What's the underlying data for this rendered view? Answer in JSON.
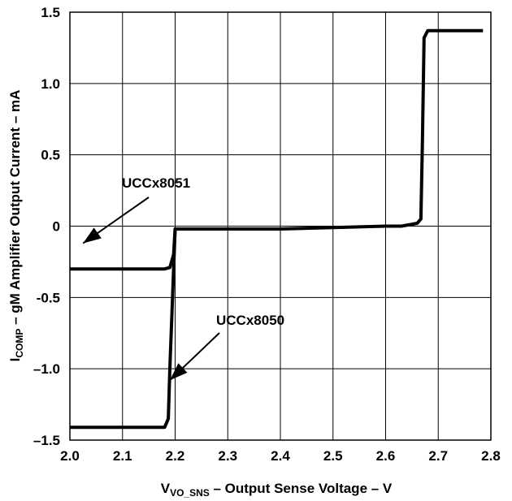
{
  "chart_data": {
    "type": "line",
    "xlabel": {
      "main": "V",
      "sub": "VO_SNS",
      "rest": " – Output Sense Voltage – V"
    },
    "ylabel": {
      "main": "I",
      "sub": "COMP",
      "rest": " – gM Amplifier Output Current – mA"
    },
    "xlim": [
      2.0,
      2.8
    ],
    "ylim": [
      -1.5,
      1.5
    ],
    "x_ticks": [
      2.0,
      2.1,
      2.2,
      2.3,
      2.4,
      2.5,
      2.6,
      2.7,
      2.8
    ],
    "x_tick_labels": [
      "2.0",
      "2.1",
      "2.2",
      "2.3",
      "2.4",
      "2.5",
      "2.6",
      "2.7",
      "2.8"
    ],
    "y_ticks": [
      1.5,
      1.0,
      0.5,
      0,
      -0.5,
      -1.0,
      -1.5
    ],
    "y_tick_labels": [
      "1.5",
      "1.0",
      "0.5",
      "0",
      "-0.5",
      "–1.0",
      "–1.5"
    ],
    "grid": true,
    "series": [
      {
        "name": "UCCx8051",
        "x": [
          2.0,
          2.18,
          2.19,
          2.197,
          2.2,
          2.3,
          2.4,
          2.5,
          2.6,
          2.63,
          2.66,
          2.667,
          2.67,
          2.673,
          2.68,
          2.7,
          2.785
        ],
        "y": [
          -0.3,
          -0.3,
          -0.29,
          -0.2,
          -0.02,
          -0.02,
          -0.02,
          -0.01,
          0.0,
          0.0,
          0.02,
          0.05,
          0.6,
          1.32,
          1.37,
          1.37,
          1.37
        ]
      },
      {
        "name": "UCCx8050",
        "x": [
          2.0,
          2.18,
          2.187,
          2.19,
          2.195,
          2.2,
          2.3
        ],
        "y": [
          -1.41,
          -1.41,
          -1.35,
          -1.0,
          -0.5,
          -0.02,
          -0.02
        ]
      }
    ],
    "annotations": [
      {
        "text": "UCCx8051",
        "series": "UCCx8051"
      },
      {
        "text": "UCCx8050",
        "series": "UCCx8050"
      }
    ]
  }
}
